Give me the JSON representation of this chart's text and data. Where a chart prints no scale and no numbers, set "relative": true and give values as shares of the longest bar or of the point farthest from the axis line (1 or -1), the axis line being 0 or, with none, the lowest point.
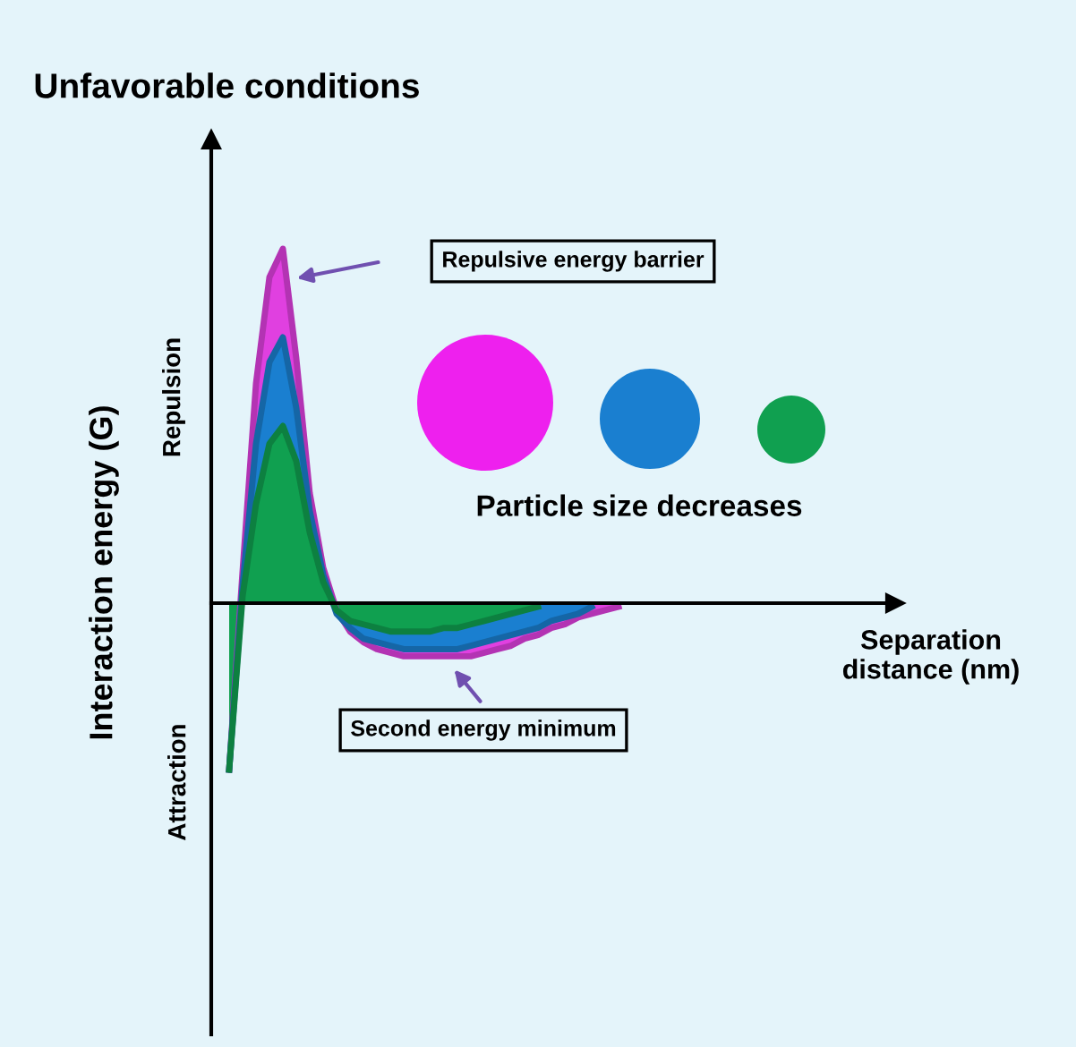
{
  "chart_data": {
    "type": "area",
    "relative": true,
    "title": "Unfavorable conditions",
    "ylabel": "Interaction energy (G)",
    "categories": [
      null,
      null,
      null,
      null,
      null,
      null,
      null,
      null,
      null,
      null,
      null,
      null,
      null,
      null,
      null,
      null,
      null,
      null,
      null,
      null,
      null,
      null,
      null,
      null,
      null,
      null,
      null,
      null,
      null,
      null
    ],
    "series": [
      {
        "color": "#e040e0",
        "values": [
          -0.47,
          0.09,
          0.62,
          0.92,
          1,
          0.69,
          0.31,
          0.1,
          -0.02,
          -0.08,
          -0.11,
          -0.13,
          -0.14,
          -0.15,
          -0.15,
          -0.15,
          -0.15,
          -0.15,
          -0.15,
          -0.14,
          -0.13,
          -0.12,
          -0.1,
          -0.09,
          -0.07,
          -0.06,
          -0.04,
          -0.03,
          -0.02,
          -0.01
        ]
      },
      {
        "color": "#1a7fd0",
        "values": [
          -0.47,
          0.05,
          0.45,
          0.68,
          0.75,
          0.55,
          0.26,
          0.08,
          -0.03,
          -0.07,
          -0.1,
          -0.11,
          -0.12,
          -0.13,
          -0.13,
          -0.13,
          -0.13,
          -0.13,
          -0.12,
          -0.11,
          -0.1,
          -0.09,
          -0.08,
          -0.07,
          -0.05,
          -0.04,
          -0.03,
          -0.01,
          null,
          null
        ]
      },
      {
        "color": "#10a050",
        "values": [
          -0.47,
          0.02,
          0.28,
          0.45,
          0.5,
          0.4,
          0.2,
          0.06,
          -0.02,
          -0.05,
          -0.06,
          -0.07,
          -0.08,
          -0.08,
          -0.08,
          -0.08,
          -0.07,
          -0.07,
          -0.06,
          -0.05,
          -0.04,
          -0.03,
          -0.02,
          -0.01,
          null,
          null,
          null,
          null,
          null,
          null
        ]
      }
    ],
    "annotations": [
      "Repulsive energy barrier",
      "Second energy minimum",
      "Particle size decreases",
      "Repulsion",
      "Attraction",
      "Separation\ndistance (nm)"
    ]
  }
}
